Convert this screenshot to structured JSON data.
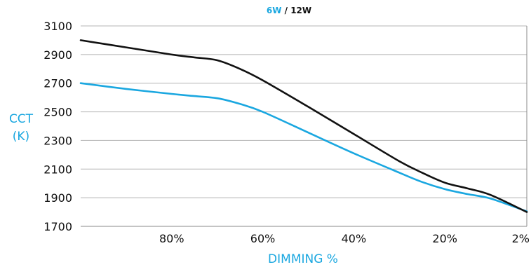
{
  "chart_data": {
    "type": "line",
    "title_parts": [
      {
        "text": "6W",
        "color": "#1aa7e0"
      },
      {
        "text": " / ",
        "color": "#111111"
      },
      {
        "text": "12W",
        "color": "#111111"
      }
    ],
    "ylabel_lines": [
      "CCT",
      "(K)"
    ],
    "xlabel": "DIMMING %",
    "x_ticks": [
      {
        "value": 80,
        "label": "80%"
      },
      {
        "value": 60,
        "label": "60%"
      },
      {
        "value": 40,
        "label": "40%"
      },
      {
        "value": 20,
        "label": "20%"
      },
      {
        "value": 2,
        "label": "2%"
      }
    ],
    "y_ticks": [
      1700,
      1900,
      2100,
      2300,
      2500,
      2700,
      2900,
      3100
    ],
    "xlim": [
      100,
      2
    ],
    "ylim": [
      1700,
      3100
    ],
    "grid": "horizontal",
    "series": [
      {
        "name": "6W",
        "color": "#1aa7e0",
        "x": [
          100,
          90,
          80,
          75,
          70,
          65,
          60,
          50,
          40,
          30,
          25,
          20,
          15,
          10,
          2
        ],
        "y": [
          2700,
          2660,
          2625,
          2610,
          2595,
          2555,
          2500,
          2355,
          2210,
          2075,
          2010,
          1960,
          1925,
          1895,
          1805
        ]
      },
      {
        "name": "12W",
        "color": "#111111",
        "x": [
          100,
          90,
          80,
          75,
          70,
          65,
          60,
          50,
          40,
          30,
          25,
          20,
          15,
          10,
          2
        ],
        "y": [
          3000,
          2950,
          2900,
          2880,
          2860,
          2800,
          2720,
          2535,
          2345,
          2155,
          2075,
          2005,
          1965,
          1920,
          1800
        ]
      }
    ]
  }
}
